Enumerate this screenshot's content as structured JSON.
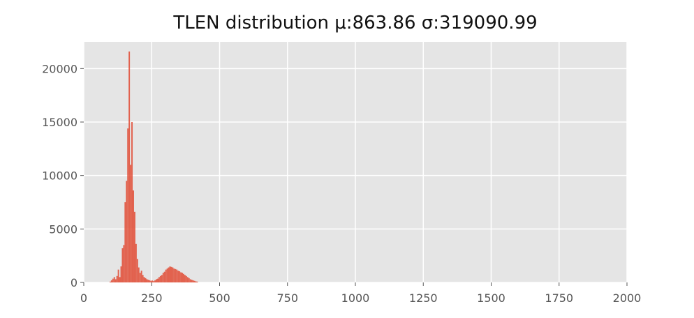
{
  "chart_data": {
    "type": "bar",
    "title": "TLEN distribution μ:863.86 σ:319090.99",
    "xlabel": "",
    "ylabel": "",
    "xlim": [
      0,
      2000
    ],
    "ylim": [
      0,
      22500
    ],
    "xticks": [
      0,
      250,
      500,
      750,
      1000,
      1250,
      1500,
      1750,
      2000
    ],
    "yticks": [
      0,
      5000,
      10000,
      15000,
      20000
    ],
    "xtick_labels": [
      "0",
      "250",
      "500",
      "750",
      "1000",
      "1250",
      "1500",
      "1750",
      "2000"
    ],
    "ytick_labels": [
      "0",
      "5000",
      "10000",
      "15000",
      "20000"
    ],
    "grid": true,
    "style": "ggplot",
    "colors": {
      "bar": "#E24A33",
      "panel": "#E5E5E5",
      "grid": "#FFFFFF",
      "tick_text": "#555555",
      "title": "#111111"
    },
    "bin_width": 5,
    "bins": [
      [
        95,
        80
      ],
      [
        100,
        200
      ],
      [
        105,
        350
      ],
      [
        110,
        500
      ],
      [
        115,
        300
      ],
      [
        120,
        600
      ],
      [
        125,
        1200
      ],
      [
        130,
        500
      ],
      [
        135,
        1500
      ],
      [
        140,
        3200
      ],
      [
        145,
        3500
      ],
      [
        150,
        7500
      ],
      [
        155,
        9500
      ],
      [
        160,
        14400
      ],
      [
        165,
        21600
      ],
      [
        170,
        11000
      ],
      [
        175,
        15000
      ],
      [
        180,
        8600
      ],
      [
        185,
        6600
      ],
      [
        190,
        3600
      ],
      [
        195,
        2200
      ],
      [
        200,
        1400
      ],
      [
        205,
        900
      ],
      [
        210,
        1100
      ],
      [
        215,
        700
      ],
      [
        220,
        500
      ],
      [
        225,
        400
      ],
      [
        230,
        300
      ],
      [
        235,
        250
      ],
      [
        240,
        200
      ],
      [
        245,
        150
      ],
      [
        250,
        180
      ],
      [
        255,
        120
      ],
      [
        260,
        200
      ],
      [
        265,
        300
      ],
      [
        270,
        350
      ],
      [
        275,
        500
      ],
      [
        280,
        600
      ],
      [
        285,
        700
      ],
      [
        290,
        900
      ],
      [
        295,
        1000
      ],
      [
        300,
        1200
      ],
      [
        305,
        1300
      ],
      [
        310,
        1400
      ],
      [
        315,
        1500
      ],
      [
        320,
        1450
      ],
      [
        325,
        1400
      ],
      [
        330,
        1300
      ],
      [
        335,
        1250
      ],
      [
        340,
        1200
      ],
      [
        345,
        1100
      ],
      [
        350,
        1050
      ],
      [
        355,
        950
      ],
      [
        360,
        900
      ],
      [
        365,
        800
      ],
      [
        370,
        700
      ],
      [
        375,
        600
      ],
      [
        380,
        500
      ],
      [
        385,
        400
      ],
      [
        390,
        300
      ],
      [
        395,
        250
      ],
      [
        400,
        200
      ],
      [
        405,
        150
      ],
      [
        410,
        100
      ],
      [
        415,
        80
      ]
    ]
  }
}
